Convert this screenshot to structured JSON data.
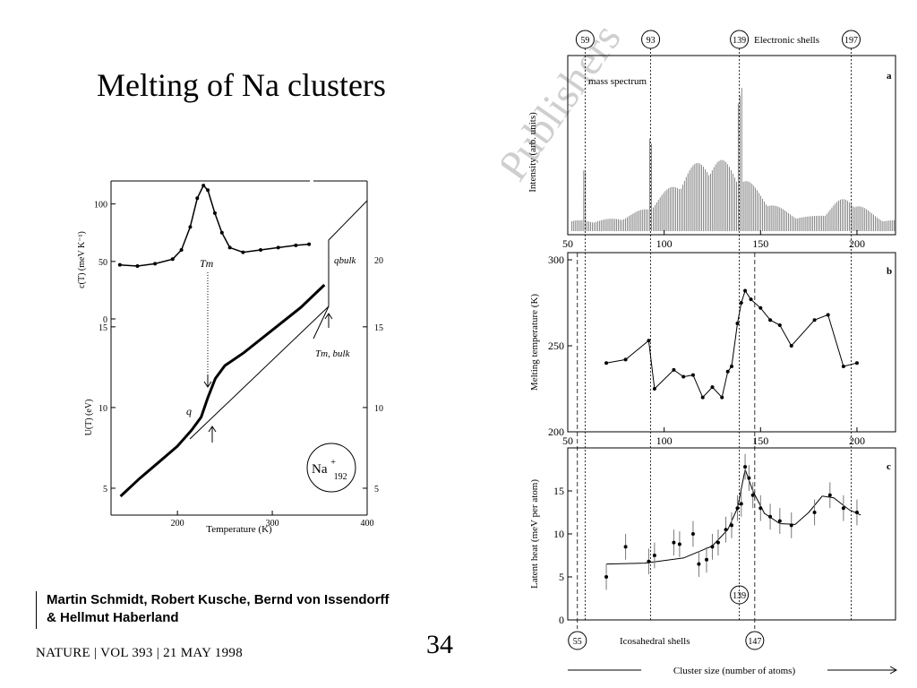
{
  "slide": {
    "title": "Melting of Na clusters",
    "authors_line1": "Martin Schmidt, Robert Kusche, Bernd von Issendorff",
    "authors_line2": "& Hellmut Haberland",
    "citation": "NATURE | VOL 393 | 21 MAY 1998",
    "page_number": "34",
    "watermark": "Publishers"
  },
  "chart_data": [
    {
      "type": "line",
      "panel": "left-top",
      "ylabel": "c(T) (meV K⁻¹)",
      "yticks": [
        "0",
        "50",
        "100"
      ],
      "annotation": "Tm",
      "right_annotation": "qbulk",
      "right_yticks": [
        "20"
      ],
      "x": [
        140,
        160,
        180,
        200,
        210,
        220,
        228,
        235,
        240,
        248,
        256,
        265,
        280,
        300,
        320,
        340,
        355
      ],
      "values": [
        47,
        46,
        48,
        52,
        60,
        80,
        105,
        116,
        112,
        92,
        75,
        62,
        58,
        60,
        62,
        64,
        65
      ]
    },
    {
      "type": "line",
      "panel": "left-bottom",
      "xlabel": "Temperature (K)",
      "ylabel": "U(T) (eV)",
      "xticks": [
        "200",
        "300",
        "400"
      ],
      "yticks": [
        "5",
        "10",
        "15"
      ],
      "right_yticks": [
        "5",
        "10",
        "15"
      ],
      "annotations": [
        "q",
        "Tm, bulk"
      ],
      "cluster_label": "Na",
      "cluster_sup": "+",
      "cluster_sub": "192",
      "x": [
        140,
        160,
        180,
        200,
        215,
        225,
        232,
        240,
        250,
        270,
        300,
        330,
        355
      ],
      "values": [
        4.5,
        5.6,
        6.6,
        7.6,
        8.6,
        9.4,
        10.6,
        11.8,
        12.6,
        13.4,
        14.8,
        16.2,
        17.6
      ]
    },
    {
      "type": "bar",
      "panel": "a",
      "label": "a",
      "ylabel": "Intensity (arb. units)",
      "annotation": "mass spectrum",
      "top_label": "Electronic shells",
      "electronic_shells": [
        "59",
        "93",
        "139",
        "197"
      ],
      "xticks": [
        "50",
        "100",
        "150",
        "200"
      ],
      "xlim": [
        50,
        220
      ]
    },
    {
      "type": "line",
      "panel": "b",
      "label": "b",
      "ylabel": "Melting temperature (K)",
      "yticks": [
        "200",
        "250",
        "300"
      ],
      "xticks": [
        "50",
        "100",
        "150",
        "200"
      ],
      "xlim": [
        50,
        220
      ],
      "ylim": [
        200,
        300
      ],
      "x": [
        70,
        80,
        92,
        95,
        105,
        110,
        115,
        120,
        125,
        130,
        133,
        135,
        138,
        140,
        142,
        145,
        150,
        155,
        160,
        166,
        178,
        185,
        193,
        200
      ],
      "values": [
        240,
        242,
        253,
        225,
        236,
        232,
        233,
        220,
        226,
        220,
        235,
        238,
        263,
        275,
        282,
        277,
        272,
        265,
        262,
        250,
        265,
        268,
        238,
        240
      ]
    },
    {
      "type": "scatter",
      "panel": "c",
      "label": "c",
      "ylabel": "Latent heat (meV per atom)",
      "yticks": [
        "0",
        "5",
        "10",
        "15"
      ],
      "xlabel": "Cluster size (number of atoms)",
      "bottom_label": "Icosahedral shells",
      "icosahedral_shells": [
        "55",
        "147"
      ],
      "inner_marker": "139",
      "xlim": [
        50,
        220
      ],
      "ylim": [
        0,
        20
      ],
      "x": [
        70,
        80,
        92,
        95,
        105,
        108,
        115,
        118,
        122,
        125,
        128,
        132,
        135,
        138,
        140,
        142,
        144,
        146,
        150,
        155,
        160,
        166,
        178,
        186,
        193,
        200
      ],
      "values": [
        5.0,
        8.5,
        6.8,
        7.5,
        9.0,
        8.8,
        10.0,
        6.5,
        7.0,
        8.5,
        9.0,
        10.5,
        11.0,
        13.0,
        13.5,
        17.8,
        16.5,
        14.5,
        13.0,
        12.0,
        11.5,
        11.0,
        12.5,
        14.5,
        13.0,
        12.5
      ],
      "fit": [
        [
          70,
          6.5
        ],
        [
          90,
          6.6
        ],
        [
          110,
          7.2
        ],
        [
          125,
          8.6
        ],
        [
          133,
          10.5
        ],
        [
          138,
          13
        ],
        [
          142,
          17.5
        ],
        [
          146,
          15
        ],
        [
          152,
          12.4
        ],
        [
          160,
          11.2
        ],
        [
          168,
          11.1
        ],
        [
          175,
          12.5
        ],
        [
          182,
          14.4
        ],
        [
          188,
          14.2
        ],
        [
          196,
          12.8
        ],
        [
          202,
          12.2
        ]
      ]
    }
  ]
}
